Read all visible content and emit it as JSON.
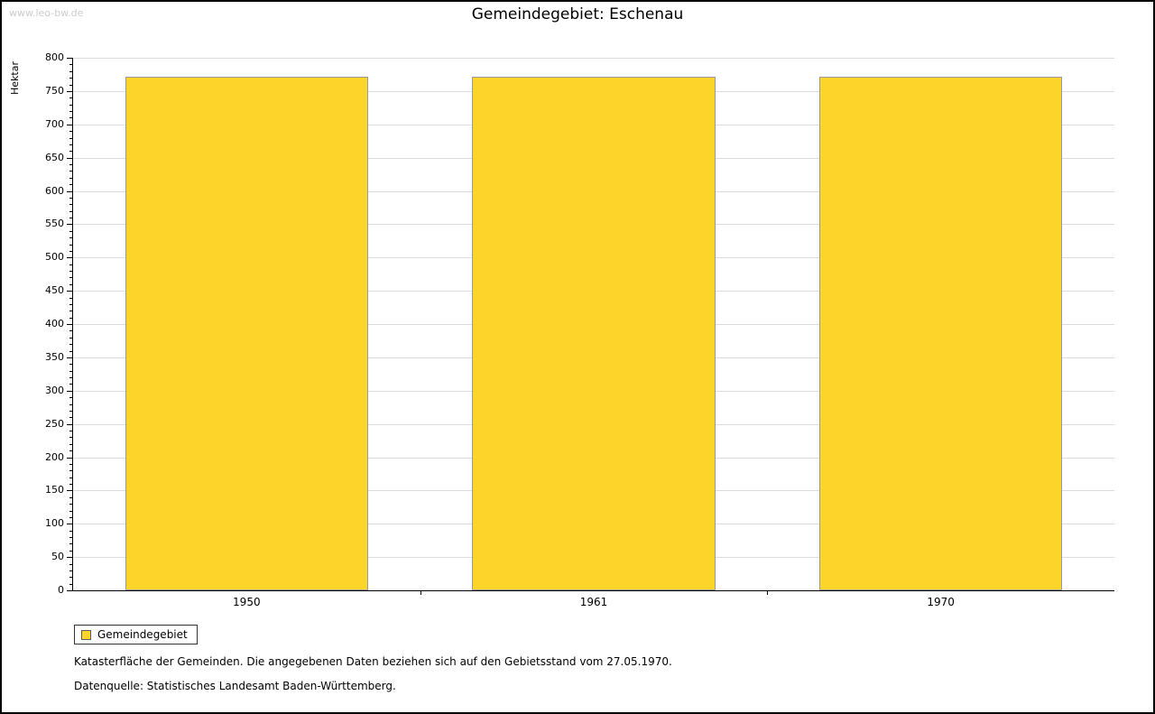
{
  "watermark": "www.leo-bw.de",
  "title": "Gemeindegebiet: Eschenau",
  "legend": {
    "label": "Gemeindegebiet",
    "swatch_color": "#fcd42a"
  },
  "footnotes": {
    "line1": "Katasterfläche der Gemeinden. Die angegebenen Daten beziehen sich auf den Gebietsstand vom 27.05.1970.",
    "line2": "Datenquelle: Statistisches Landesamt Baden-Württemberg."
  },
  "chart_data": {
    "type": "bar",
    "title": "Gemeindegebiet: Eschenau",
    "categories": [
      "1950",
      "1961",
      "1970"
    ],
    "series": [
      {
        "name": "Gemeindegebiet",
        "values": [
          772,
          772,
          772
        ]
      }
    ],
    "xlabel": "",
    "ylabel": "Hektar",
    "ylim": [
      0,
      800
    ],
    "ytick_step": 50,
    "ytick_minor_step": 10,
    "grid": true,
    "bar_color": "#fcd42a",
    "bar_border_color": "#999999",
    "legend_position": "bottom-left"
  }
}
